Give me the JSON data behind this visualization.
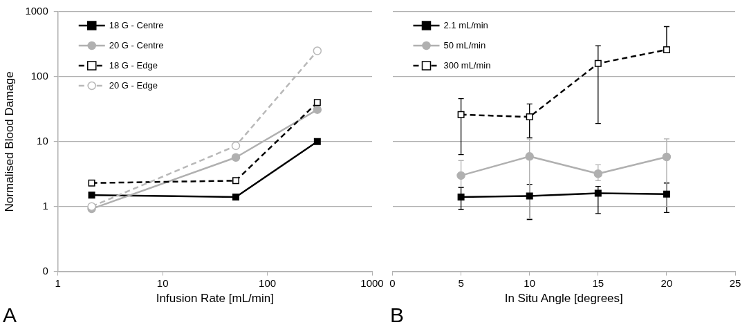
{
  "chart_data": [
    {
      "type": "line",
      "xlabel": "Infusion Rate [mL/min]",
      "ylabel": "Normalised Blood Damage",
      "x": [
        2.1,
        50,
        300
      ],
      "series": [
        {
          "name": "18 G - Centre",
          "color": "#000000",
          "marker": "square",
          "line_style": "solid",
          "values": [
            1.5,
            1.4,
            10
          ]
        },
        {
          "name": "20 G - Centre",
          "color": "#b0b0b0",
          "marker": "circle",
          "line_style": "solid",
          "values": [
            0.92,
            5.7,
            31
          ]
        },
        {
          "name": "18 G - Edge",
          "color": "#000000",
          "marker": "square",
          "line_style": "dashed",
          "values": [
            2.3,
            2.5,
            40
          ]
        },
        {
          "name": "20 G - Edge",
          "color": "#b8b8b8",
          "marker": "circle",
          "line_style": "dashed",
          "values": [
            1.0,
            8.6,
            250
          ]
        }
      ],
      "log": "xy",
      "xlim": [
        1,
        1000
      ],
      "xticks": [
        1,
        10,
        100,
        1000
      ],
      "ylim": [
        0.1,
        1000
      ],
      "yticks": [
        {
          "value": 0.1,
          "label": "0"
        },
        1,
        10,
        100,
        1000
      ],
      "grid": "y",
      "legend": "top left",
      "annotations": [
        "A"
      ]
    },
    {
      "type": "line",
      "xlabel": "In Situ Angle [degrees]",
      "x": [
        5,
        10,
        15,
        20
      ],
      "series": [
        {
          "name": "2.1 mL/min",
          "color": "#000000",
          "marker": "square",
          "line_style": "solid",
          "values": [
            1.4,
            1.45,
            1.6,
            1.55
          ],
          "errors": [
            [
              0.9,
              1.95
            ],
            [
              0.63,
              2.2
            ],
            [
              0.78,
              2.04
            ],
            [
              0.81,
              2.3
            ]
          ]
        },
        {
          "name": "50 mL/min",
          "color": "#b0b0b0",
          "marker": "circle",
          "line_style": "solid",
          "values": [
            3.0,
            5.9,
            3.2,
            5.8
          ],
          "errors": [
            [
              2.0,
              5.1
            ],
            [
              0.65,
              11
            ],
            [
              2.5,
              4.4
            ],
            [
              1.0,
              11
            ]
          ]
        },
        {
          "name": "300 mL/min",
          "color": "#000000",
          "marker": "square",
          "line_style": "dashed",
          "values": [
            26,
            24,
            160,
            260
          ],
          "errors": [
            [
              6.3,
              46
            ],
            [
              11.5,
              38
            ],
            [
              19,
              300
            ],
            [
              260,
              590
            ]
          ]
        }
      ],
      "log": "y",
      "xlim": [
        0,
        25
      ],
      "xticks": [
        0,
        5,
        10,
        15,
        20,
        25
      ],
      "ylim": [
        0.1,
        1000
      ],
      "yticks": [
        0.1,
        1,
        10,
        100,
        1000
      ],
      "grid": "y",
      "legend": "top left",
      "tick_labels": "x",
      "annotations": [
        "B"
      ]
    }
  ]
}
